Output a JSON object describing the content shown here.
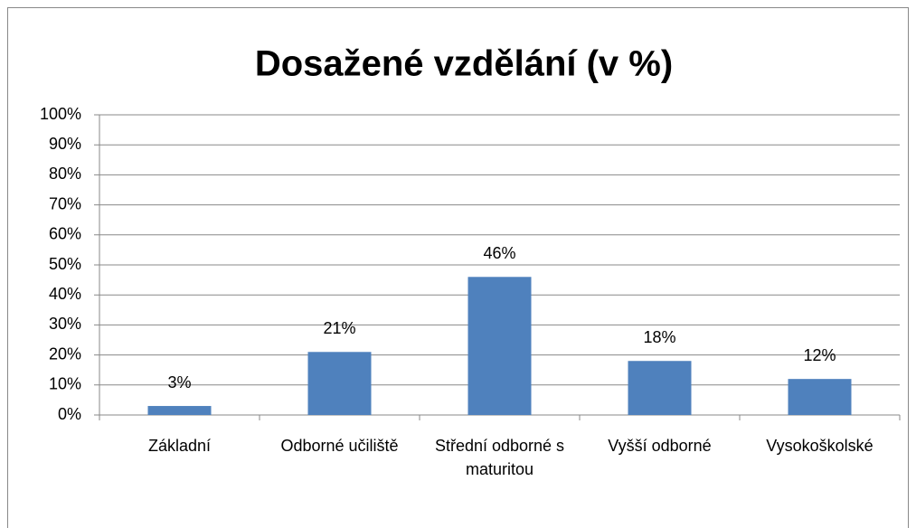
{
  "chart_data": {
    "type": "bar",
    "title": "Dosažené vzdělání (v %)",
    "categories": [
      "Základní",
      "Odborné učiliště",
      "Střední odborné s maturitou",
      "Vyšší odborné",
      "Vysokoškolské"
    ],
    "values": [
      3,
      21,
      46,
      18,
      12
    ],
    "value_labels": [
      "3%",
      "21%",
      "46%",
      "18%",
      "12%"
    ],
    "color": "#4f81bd",
    "ylim": [
      0,
      100
    ],
    "yticks": [
      {
        "value": 0,
        "label": "0%"
      },
      {
        "value": 10,
        "label": "10%"
      },
      {
        "value": 20,
        "label": "20%"
      },
      {
        "value": 30,
        "label": "30%"
      },
      {
        "value": 40,
        "label": "40%"
      },
      {
        "value": 50,
        "label": "50%"
      },
      {
        "value": 60,
        "label": "60%"
      },
      {
        "value": 70,
        "label": "70%"
      },
      {
        "value": 80,
        "label": "80%"
      },
      {
        "value": 90,
        "label": "90%"
      },
      {
        "value": 100,
        "label": "100%"
      }
    ],
    "grid": true
  }
}
